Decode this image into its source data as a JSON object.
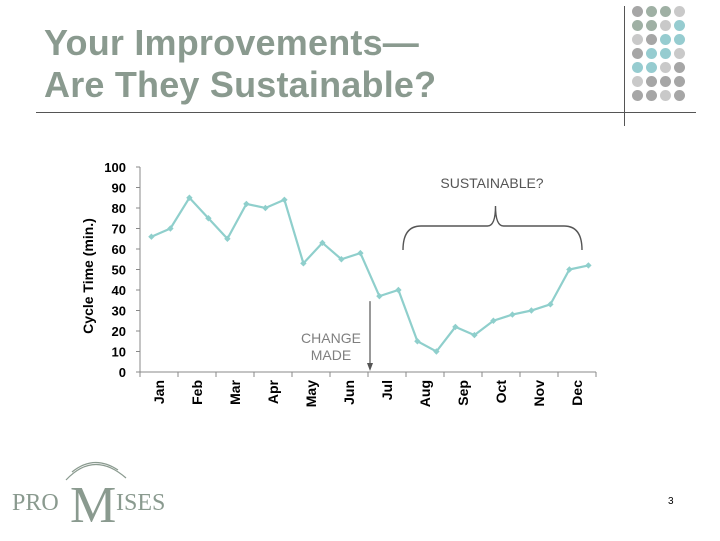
{
  "slide": {
    "title_line1": "Your Improvements—",
    "title_line2": "Are They Sustainable?",
    "page_number": "3",
    "logo": {
      "text_left": "PRO",
      "text_mid": "M",
      "text_right": "ISES"
    }
  },
  "colors": {
    "title": "#8a9a8f",
    "series": "#8fcfcc",
    "annotation_text": "#7f7f7f",
    "logo": "#8a9a8f",
    "dot_gray": "#a6a6a6",
    "dot_green": "#9fb0a4",
    "dot_teal": "#96ccd0",
    "dot_light": "#c9c9c9"
  },
  "dot_grid_colors": [
    [
      "dot_gray",
      "dot_green",
      "dot_green",
      "dot_light"
    ],
    [
      "dot_green",
      "dot_green",
      "dot_light",
      "dot_teal"
    ],
    [
      "dot_light",
      "dot_gray",
      "dot_teal",
      "dot_teal"
    ],
    [
      "dot_gray",
      "dot_teal",
      "dot_teal",
      "dot_light"
    ],
    [
      "dot_teal",
      "dot_teal",
      "dot_light",
      "dot_gray"
    ],
    [
      "dot_light",
      "dot_gray",
      "dot_gray",
      "dot_gray"
    ],
    [
      "dot_gray",
      "dot_gray",
      "dot_light",
      "dot_gray"
    ]
  ],
  "chart_data": {
    "type": "line",
    "ylabel": "Cycle Time (min.)",
    "xlabel": "",
    "ylim": [
      0,
      100
    ],
    "yticks": [
      0,
      10,
      20,
      30,
      40,
      50,
      60,
      70,
      80,
      90,
      100
    ],
    "month_labels": [
      "Jan",
      "Feb",
      "Mar",
      "Apr",
      "May",
      "Jun",
      "Jul",
      "Aug",
      "Sep",
      "Oct",
      "Nov",
      "Dec"
    ],
    "series": [
      {
        "values": [
          66,
          70,
          85,
          75,
          65,
          82,
          80,
          84,
          53,
          63,
          55,
          58,
          37,
          40,
          15,
          10,
          22,
          18,
          25,
          28,
          30,
          33,
          50,
          52
        ]
      }
    ],
    "grid": false,
    "legend": "none",
    "annotations": {
      "change": "CHANGE\nMADE",
      "sustainable": "SUSTAINABLE?"
    }
  }
}
